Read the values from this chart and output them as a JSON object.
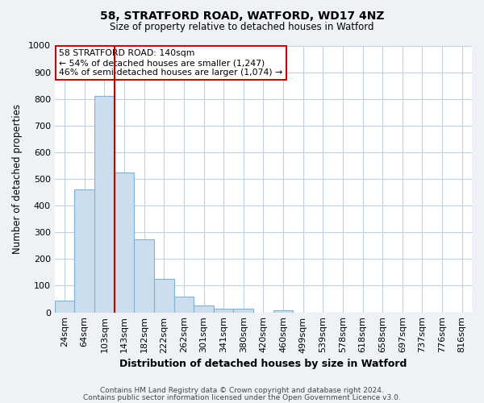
{
  "title1": "58, STRATFORD ROAD, WATFORD, WD17 4NZ",
  "title2": "Size of property relative to detached houses in Watford",
  "xlabel": "Distribution of detached houses by size in Watford",
  "ylabel": "Number of detached properties",
  "bar_labels": [
    "24sqm",
    "64sqm",
    "103sqm",
    "143sqm",
    "182sqm",
    "222sqm",
    "262sqm",
    "301sqm",
    "341sqm",
    "380sqm",
    "420sqm",
    "460sqm",
    "499sqm",
    "539sqm",
    "578sqm",
    "618sqm",
    "658sqm",
    "697sqm",
    "737sqm",
    "776sqm",
    "816sqm"
  ],
  "bar_values": [
    45,
    460,
    810,
    525,
    275,
    125,
    60,
    25,
    13,
    13,
    0,
    8,
    0,
    0,
    0,
    0,
    0,
    0,
    0,
    0,
    0
  ],
  "bar_color": "#ccdded",
  "bar_edge_color": "#7fb3d5",
  "vline_color": "#cc0000",
  "annotation_text": "58 STRATFORD ROAD: 140sqm\n← 54% of detached houses are smaller (1,247)\n46% of semi-detached houses are larger (1,074) →",
  "annotation_box_color": "#ffffff",
  "annotation_box_edge": "#cc0000",
  "ylim": [
    0,
    1000
  ],
  "yticks": [
    0,
    100,
    200,
    300,
    400,
    500,
    600,
    700,
    800,
    900,
    1000
  ],
  "footer1": "Contains HM Land Registry data © Crown copyright and database right 2024.",
  "footer2": "Contains public sector information licensed under the Open Government Licence v3.0.",
  "bg_color": "#eef2f7",
  "plot_bg_color": "#ffffff",
  "grid_color": "#c0d0e0"
}
